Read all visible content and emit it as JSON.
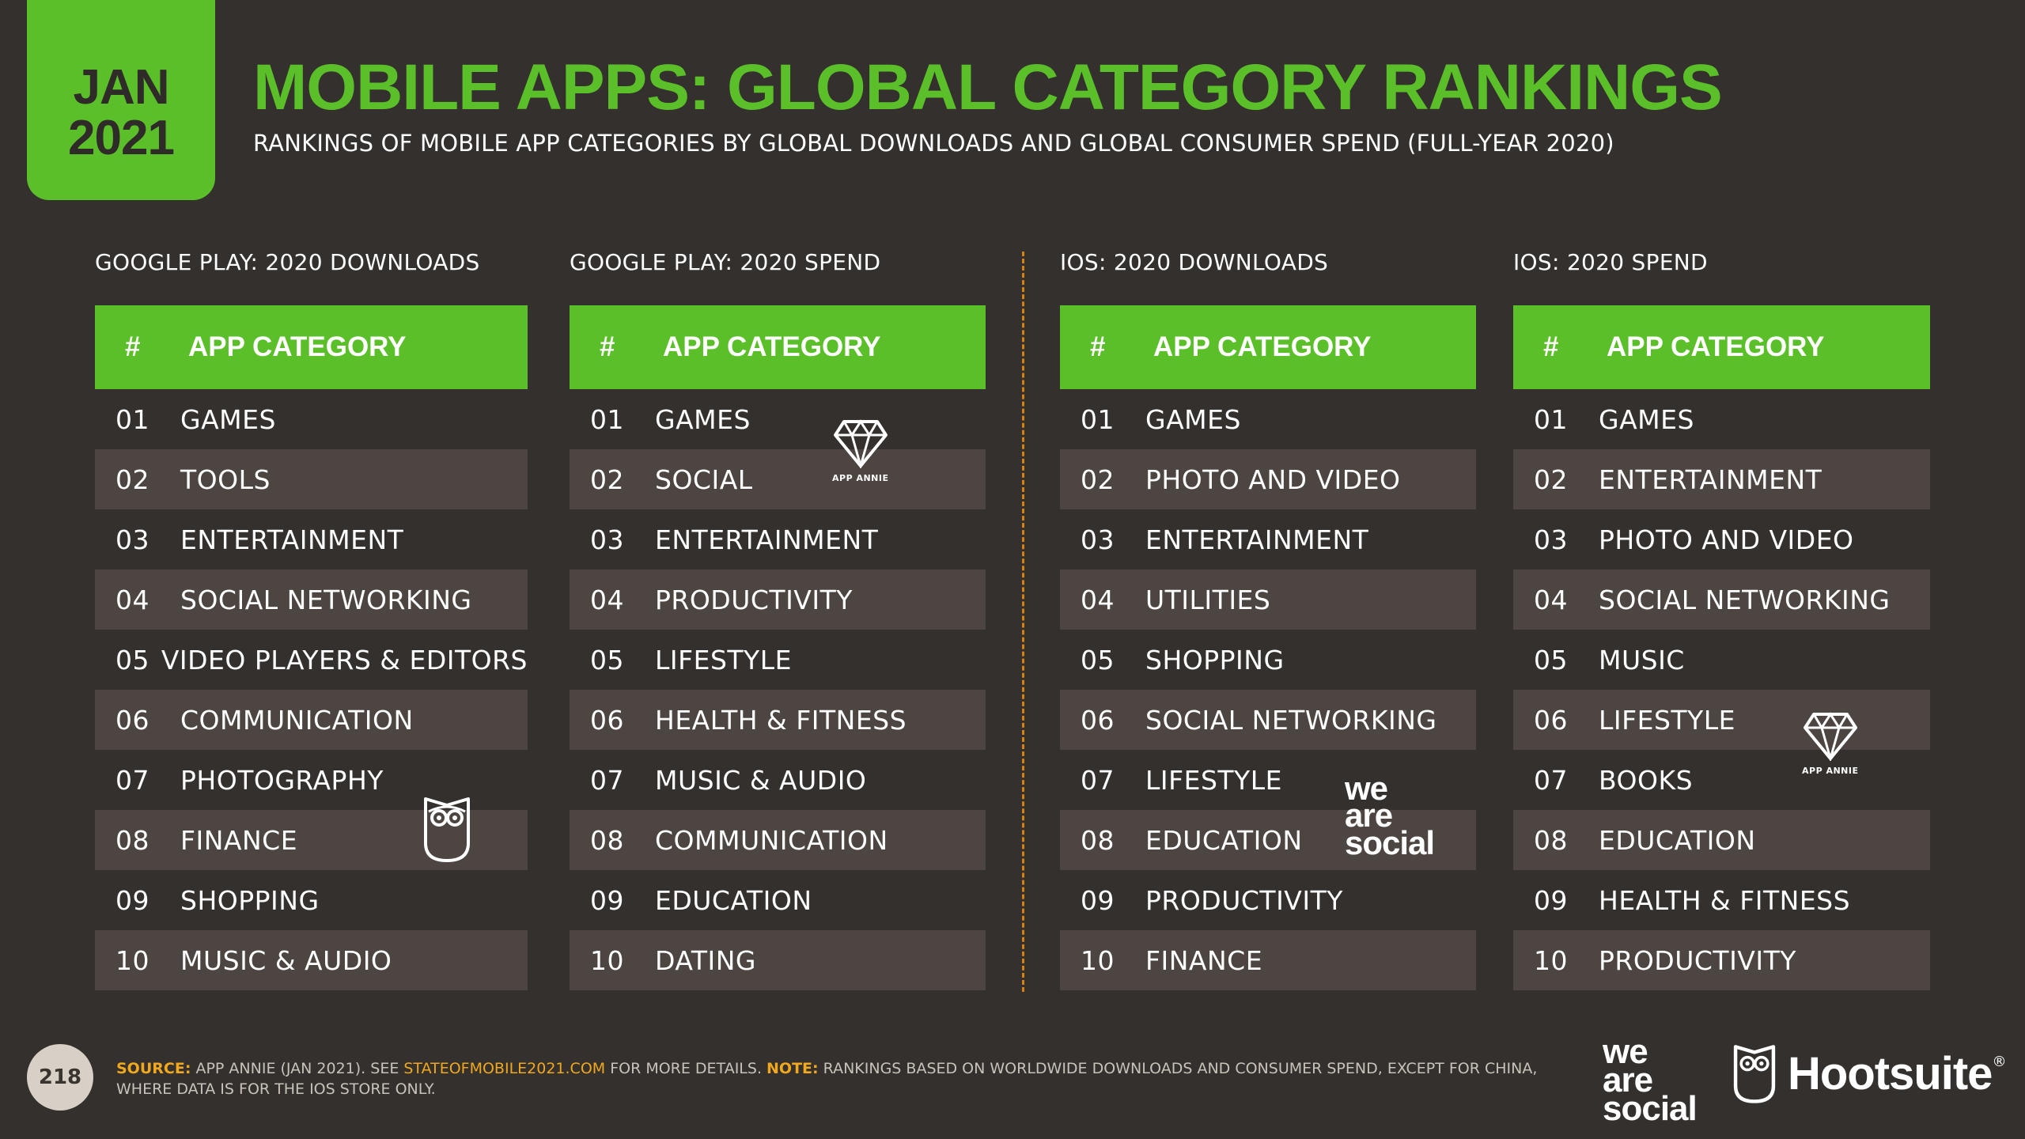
{
  "date_tab": {
    "month": "JAN",
    "year": "2021"
  },
  "title": "MOBILE APPS: GLOBAL CATEGORY RANKINGS",
  "subtitle": "RANKINGS OF MOBILE APP CATEGORIES BY GLOBAL DOWNLOADS AND GLOBAL CONSUMER SPEND (FULL-YEAR 2020)",
  "table_header": {
    "num": "#",
    "category": "APP CATEGORY"
  },
  "panels": [
    {
      "title": "GOOGLE PLAY: 2020 DOWNLOADS",
      "rows": [
        {
          "rank": "01",
          "category": "GAMES"
        },
        {
          "rank": "02",
          "category": "TOOLS"
        },
        {
          "rank": "03",
          "category": "ENTERTAINMENT"
        },
        {
          "rank": "04",
          "category": "SOCIAL NETWORKING"
        },
        {
          "rank": "05",
          "category": "VIDEO PLAYERS & EDITORS"
        },
        {
          "rank": "06",
          "category": "COMMUNICATION"
        },
        {
          "rank": "07",
          "category": "PHOTOGRAPHY"
        },
        {
          "rank": "08",
          "category": "FINANCE"
        },
        {
          "rank": "09",
          "category": "SHOPPING"
        },
        {
          "rank": "10",
          "category": "MUSIC & AUDIO"
        }
      ]
    },
    {
      "title": "GOOGLE PLAY: 2020 SPEND",
      "rows": [
        {
          "rank": "01",
          "category": "GAMES"
        },
        {
          "rank": "02",
          "category": "SOCIAL"
        },
        {
          "rank": "03",
          "category": "ENTERTAINMENT"
        },
        {
          "rank": "04",
          "category": "PRODUCTIVITY"
        },
        {
          "rank": "05",
          "category": "LIFESTYLE"
        },
        {
          "rank": "06",
          "category": "HEALTH & FITNESS"
        },
        {
          "rank": "07",
          "category": "MUSIC & AUDIO"
        },
        {
          "rank": "08",
          "category": "COMMUNICATION"
        },
        {
          "rank": "09",
          "category": "EDUCATION"
        },
        {
          "rank": "10",
          "category": "DATING"
        }
      ]
    },
    {
      "title": "IOS: 2020 DOWNLOADS",
      "rows": [
        {
          "rank": "01",
          "category": "GAMES"
        },
        {
          "rank": "02",
          "category": "PHOTO AND VIDEO"
        },
        {
          "rank": "03",
          "category": "ENTERTAINMENT"
        },
        {
          "rank": "04",
          "category": "UTILITIES"
        },
        {
          "rank": "05",
          "category": "SHOPPING"
        },
        {
          "rank": "06",
          "category": "SOCIAL NETWORKING"
        },
        {
          "rank": "07",
          "category": "LIFESTYLE"
        },
        {
          "rank": "08",
          "category": "EDUCATION"
        },
        {
          "rank": "09",
          "category": "PRODUCTIVITY"
        },
        {
          "rank": "10",
          "category": "FINANCE"
        }
      ]
    },
    {
      "title": "IOS: 2020 SPEND",
      "rows": [
        {
          "rank": "01",
          "category": "GAMES"
        },
        {
          "rank": "02",
          "category": "ENTERTAINMENT"
        },
        {
          "rank": "03",
          "category": "PHOTO AND VIDEO"
        },
        {
          "rank": "04",
          "category": "SOCIAL NETWORKING"
        },
        {
          "rank": "05",
          "category": "MUSIC"
        },
        {
          "rank": "06",
          "category": "LIFESTYLE"
        },
        {
          "rank": "07",
          "category": "BOOKS"
        },
        {
          "rank": "08",
          "category": "EDUCATION"
        },
        {
          "rank": "09",
          "category": "HEALTH & FITNESS"
        },
        {
          "rank": "10",
          "category": "PRODUCTIVITY"
        }
      ]
    }
  ],
  "watermarks": {
    "app_annie": "APP ANNIE",
    "we_are_social": [
      "we",
      "are",
      "social"
    ]
  },
  "footer": {
    "page_number": "218",
    "source_label": "SOURCE:",
    "source_text_1": " APP ANNIE (JAN 2021). SEE ",
    "source_link": "STATEOFMOBILE2021.COM",
    "source_text_2": " FOR MORE DETAILS. ",
    "note_label": "NOTE:",
    "note_text": " RANKINGS BASED ON WORLDWIDE DOWNLOADS AND CONSUMER SPEND, EXCEPT FOR CHINA, WHERE DATA IS FOR THE IOS STORE ONLY.",
    "we_are_social": [
      "we",
      "are",
      "social"
    ],
    "hootsuite": "Hootsuite",
    "hootsuite_mark": "®"
  },
  "colors": {
    "background": "#34302d",
    "accent_green": "#5bbf2a",
    "row_alt": "#4c4541",
    "divider_orange": "#d4830f",
    "highlight_orange": "#f0a81e"
  }
}
